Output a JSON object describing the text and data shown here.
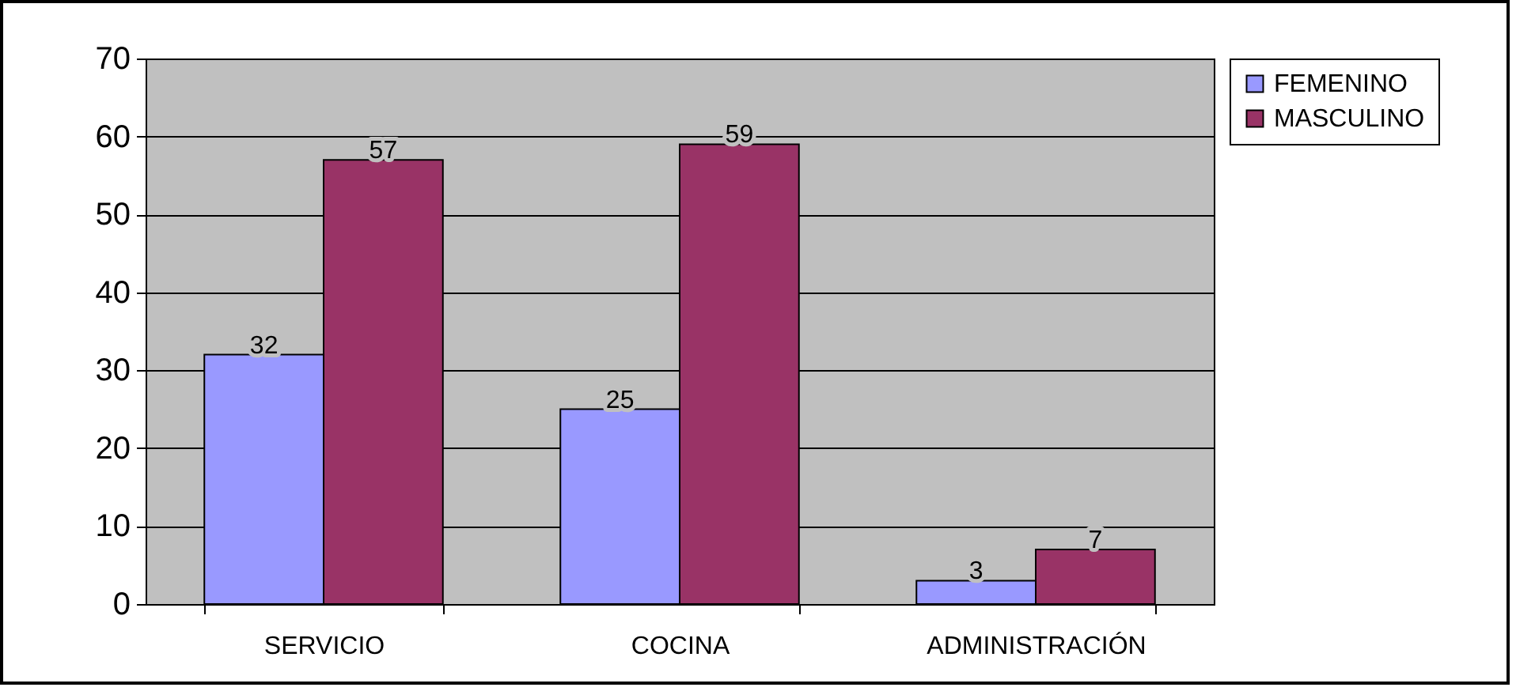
{
  "chart_data": {
    "type": "bar",
    "categories": [
      "SERVICIO",
      "COCINA",
      "ADMINISTRACIÓN"
    ],
    "series": [
      {
        "name": "FEMENINO",
        "color": "#9999ff",
        "values": [
          32,
          25,
          3
        ]
      },
      {
        "name": "MASCULINO",
        "color": "#993366",
        "values": [
          57,
          59,
          7
        ]
      }
    ],
    "ylim": [
      0,
      70
    ],
    "yticks": [
      0,
      10,
      20,
      30,
      40,
      50,
      60,
      70
    ],
    "grid": "y",
    "legend": "right",
    "data_labels": true
  }
}
